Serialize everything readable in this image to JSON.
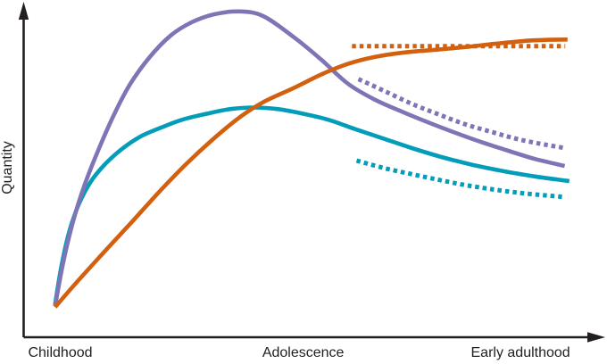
{
  "chart_data": {
    "type": "line",
    "title": "",
    "ylabel": "Quantity",
    "xlabel": "",
    "background": "#ffffff",
    "axis_color": "#231f20",
    "legend": "none",
    "grid": false,
    "x_ticks": [
      {
        "label": "Childhood",
        "pos": 0.063
      },
      {
        "label": "Adolescence",
        "pos": 0.481
      },
      {
        "label": "Early adulthood",
        "pos": 0.855
      }
    ],
    "y_axis": {
      "arrow": true,
      "range": [
        0,
        1
      ]
    },
    "x_axis": {
      "arrow": true,
      "range": [
        0,
        1
      ]
    },
    "series": [
      {
        "id": "teal-solid",
        "color": "#039db9",
        "style": "solid",
        "points": [
          [
            0.054,
            0.099
          ],
          [
            0.065,
            0.215
          ],
          [
            0.078,
            0.317
          ],
          [
            0.095,
            0.403
          ],
          [
            0.115,
            0.47
          ],
          [
            0.14,
            0.524
          ],
          [
            0.169,
            0.57
          ],
          [
            0.201,
            0.608
          ],
          [
            0.235,
            0.634
          ],
          [
            0.273,
            0.659
          ],
          [
            0.315,
            0.677
          ],
          [
            0.355,
            0.691
          ],
          [
            0.396,
            0.696
          ],
          [
            0.438,
            0.691
          ],
          [
            0.481,
            0.677
          ],
          [
            0.524,
            0.659
          ],
          [
            0.568,
            0.632
          ],
          [
            0.619,
            0.602
          ],
          [
            0.668,
            0.573
          ],
          [
            0.719,
            0.546
          ],
          [
            0.773,
            0.522
          ],
          [
            0.826,
            0.503
          ],
          [
            0.88,
            0.487
          ],
          [
            0.939,
            0.473
          ]
        ]
      },
      {
        "id": "purple-solid",
        "color": "#7e74b6",
        "style": "solid",
        "points": [
          [
            0.054,
            0.094
          ],
          [
            0.068,
            0.226
          ],
          [
            0.084,
            0.344
          ],
          [
            0.104,
            0.457
          ],
          [
            0.128,
            0.565
          ],
          [
            0.154,
            0.669
          ],
          [
            0.183,
            0.766
          ],
          [
            0.217,
            0.849
          ],
          [
            0.253,
            0.914
          ],
          [
            0.289,
            0.954
          ],
          [
            0.327,
            0.978
          ],
          [
            0.37,
            0.987
          ],
          [
            0.412,
            0.973
          ],
          [
            0.465,
            0.909
          ],
          [
            0.512,
            0.841
          ],
          [
            0.558,
            0.768
          ],
          [
            0.604,
            0.72
          ],
          [
            0.65,
            0.684
          ],
          [
            0.696,
            0.651
          ],
          [
            0.742,
            0.62
          ],
          [
            0.788,
            0.591
          ],
          [
            0.834,
            0.565
          ],
          [
            0.88,
            0.54
          ],
          [
            0.931,
            0.519
          ]
        ]
      },
      {
        "id": "orange-solid",
        "color": "#d2600e",
        "style": "solid",
        "points": [
          [
            0.054,
            0.091
          ],
          [
            0.094,
            0.172
          ],
          [
            0.14,
            0.261
          ],
          [
            0.186,
            0.349
          ],
          [
            0.232,
            0.438
          ],
          [
            0.278,
            0.522
          ],
          [
            0.324,
            0.597
          ],
          [
            0.37,
            0.664
          ],
          [
            0.412,
            0.712
          ],
          [
            0.465,
            0.755
          ],
          [
            0.512,
            0.796
          ],
          [
            0.558,
            0.828
          ],
          [
            0.604,
            0.849
          ],
          [
            0.657,
            0.863
          ],
          [
            0.711,
            0.871
          ],
          [
            0.765,
            0.88
          ],
          [
            0.811,
            0.889
          ],
          [
            0.865,
            0.898
          ],
          [
            0.903,
            0.901
          ],
          [
            0.936,
            0.902
          ]
        ]
      },
      {
        "id": "teal-dotted",
        "color": "#039db9",
        "style": "dotted",
        "points": [
          [
            0.573,
            0.535
          ],
          [
            0.619,
            0.513
          ],
          [
            0.665,
            0.495
          ],
          [
            0.711,
            0.478
          ],
          [
            0.757,
            0.462
          ],
          [
            0.803,
            0.449
          ],
          [
            0.85,
            0.438
          ],
          [
            0.896,
            0.43
          ],
          [
            0.929,
            0.425
          ]
        ]
      },
      {
        "id": "purple-dotted",
        "color": "#7e74b6",
        "style": "dotted",
        "points": [
          [
            0.576,
            0.782
          ],
          [
            0.622,
            0.745
          ],
          [
            0.668,
            0.707
          ],
          [
            0.714,
            0.675
          ],
          [
            0.76,
            0.645
          ],
          [
            0.807,
            0.621
          ],
          [
            0.853,
            0.599
          ],
          [
            0.899,
            0.583
          ],
          [
            0.932,
            0.573
          ]
        ]
      },
      {
        "id": "orange-dotted",
        "color": "#d2600e",
        "style": "dotted",
        "points": [
          [
            0.565,
            0.882
          ],
          [
            0.675,
            0.882
          ],
          [
            0.8,
            0.882
          ],
          [
            0.932,
            0.882
          ]
        ]
      }
    ]
  }
}
